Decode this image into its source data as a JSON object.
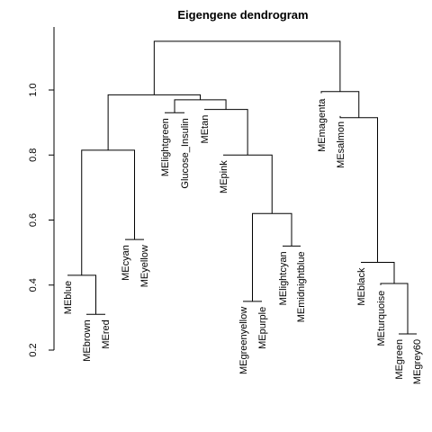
{
  "chart_data": {
    "type": "dendrogram",
    "title": "Eigengene dendrogram",
    "xlabel": "",
    "ylabel": "",
    "ylim": [
      0.2,
      1.2
    ],
    "yticks": [
      0.2,
      0.4,
      0.6,
      0.8,
      1.0
    ],
    "ytick_labels": [
      "0.2",
      "0.4",
      "0.6",
      "0.8",
      "1.0"
    ],
    "leaves": [
      {
        "label": "MEblue",
        "height": 0.43
      },
      {
        "label": "MEbrown",
        "height": 0.31
      },
      {
        "label": "MEred",
        "height": 0.31
      },
      {
        "label": "MEcyan",
        "height": 0.54
      },
      {
        "label": "MEyellow",
        "height": 0.54
      },
      {
        "label": "MElightgreen",
        "height": 0.93
      },
      {
        "label": "Glucose_Insulin",
        "height": 0.93
      },
      {
        "label": "MEtan",
        "height": 0.94
      },
      {
        "label": "MEpink",
        "height": 0.8
      },
      {
        "label": "MEgreenyellow",
        "height": 0.35
      },
      {
        "label": "MEpurple",
        "height": 0.35
      },
      {
        "label": "MElightcyan",
        "height": 0.52
      },
      {
        "label": "MEmidnightblue",
        "height": 0.52
      },
      {
        "label": "MEmagenta",
        "height": 0.99
      },
      {
        "label": "MEsalmon",
        "height": 0.92
      },
      {
        "label": "MEblack",
        "height": 0.47
      },
      {
        "label": "MEturquoise",
        "height": 0.4
      },
      {
        "label": "MEgreen",
        "height": 0.25
      },
      {
        "label": "MEgrey60",
        "height": 0.25
      }
    ],
    "merges": [
      {
        "a": [
          "leaf",
          1
        ],
        "b": [
          "leaf",
          2
        ],
        "height": 0.31
      },
      {
        "a": [
          "leaf",
          0
        ],
        "b": [
          "node",
          0
        ],
        "height": 0.43
      },
      {
        "a": [
          "leaf",
          3
        ],
        "b": [
          "leaf",
          4
        ],
        "height": 0.54
      },
      {
        "a": [
          "node",
          1
        ],
        "b": [
          "node",
          2
        ],
        "height": 0.815
      },
      {
        "a": [
          "leaf",
          5
        ],
        "b": [
          "leaf",
          6
        ],
        "height": 0.93
      },
      {
        "a": [
          "leaf",
          9
        ],
        "b": [
          "leaf",
          10
        ],
        "height": 0.35
      },
      {
        "a": [
          "leaf",
          11
        ],
        "b": [
          "leaf",
          12
        ],
        "height": 0.52
      },
      {
        "a": [
          "node",
          5
        ],
        "b": [
          "node",
          6
        ],
        "height": 0.62
      },
      {
        "a": [
          "leaf",
          8
        ],
        "b": [
          "node",
          7
        ],
        "height": 0.8
      },
      {
        "a": [
          "leaf",
          7
        ],
        "b": [
          "node",
          8
        ],
        "height": 0.94
      },
      {
        "a": [
          "node",
          4
        ],
        "b": [
          "node",
          9
        ],
        "height": 0.97
      },
      {
        "a": [
          "node",
          3
        ],
        "b": [
          "node",
          10
        ],
        "height": 0.985
      },
      {
        "a": [
          "leaf",
          17
        ],
        "b": [
          "leaf",
          18
        ],
        "height": 0.25
      },
      {
        "a": [
          "leaf",
          16
        ],
        "b": [
          "node",
          12
        ],
        "height": 0.405
      },
      {
        "a": [
          "leaf",
          15
        ],
        "b": [
          "node",
          13
        ],
        "height": 0.47
      },
      {
        "a": [
          "leaf",
          14
        ],
        "b": [
          "node",
          14
        ],
        "height": 0.915
      },
      {
        "a": [
          "leaf",
          13
        ],
        "b": [
          "node",
          15
        ],
        "height": 0.995
      },
      {
        "a": [
          "node",
          11
        ],
        "b": [
          "node",
          16
        ],
        "height": 1.15
      }
    ]
  }
}
